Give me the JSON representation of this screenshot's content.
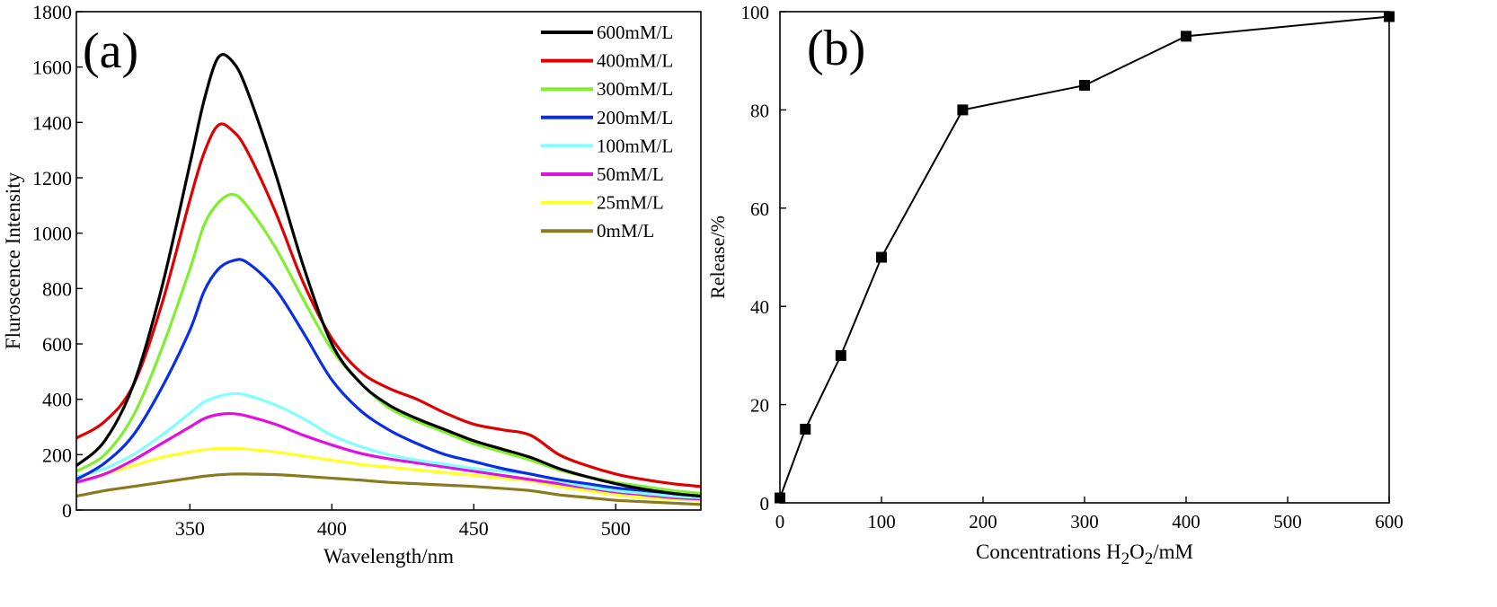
{
  "chart_data": [
    {
      "type": "line",
      "panel_label": "(a)",
      "xlabel": "Wavelength/nm",
      "ylabel": "Fluroscence Intensity",
      "xlim": [
        310,
        530
      ],
      "ylim": [
        0,
        1800
      ],
      "xticks": [
        350,
        400,
        450,
        500
      ],
      "yticks": [
        0,
        200,
        400,
        600,
        800,
        1000,
        1200,
        1400,
        1600,
        1800
      ],
      "grid": false,
      "legend_position": "top-right",
      "x": [
        310,
        320,
        330,
        340,
        350,
        355,
        360,
        365,
        370,
        380,
        390,
        400,
        410,
        420,
        430,
        440,
        450,
        460,
        470,
        480,
        490,
        500,
        510,
        520,
        530
      ],
      "series": [
        {
          "name": "600mM/L",
          "color": "#000000",
          "values": [
            160,
            250,
            450,
            800,
            1250,
            1480,
            1635,
            1620,
            1520,
            1220,
            880,
            600,
            460,
            380,
            330,
            290,
            250,
            220,
            190,
            150,
            120,
            95,
            75,
            60,
            50
          ]
        },
        {
          "name": "400mM/L",
          "color": "#e00000",
          "values": [
            260,
            320,
            450,
            740,
            1120,
            1290,
            1390,
            1370,
            1300,
            1080,
            820,
            620,
            500,
            440,
            400,
            350,
            310,
            290,
            270,
            200,
            160,
            130,
            110,
            95,
            85
          ]
        },
        {
          "name": "300mM/L",
          "color": "#80ef30",
          "values": [
            140,
            200,
            340,
            580,
            870,
            1030,
            1110,
            1140,
            1100,
            950,
            760,
            580,
            460,
            370,
            320,
            280,
            240,
            210,
            180,
            145,
            120,
            100,
            85,
            70,
            60
          ]
        },
        {
          "name": "200mM/L",
          "color": "#0a2ee8",
          "values": [
            110,
            170,
            270,
            440,
            650,
            790,
            870,
            900,
            895,
            800,
            640,
            470,
            360,
            290,
            240,
            200,
            175,
            150,
            130,
            110,
            95,
            80,
            70,
            60,
            50
          ]
        },
        {
          "name": "100mM/L",
          "color": "#80ffff",
          "values": [
            120,
            150,
            200,
            270,
            350,
            390,
            410,
            420,
            415,
            380,
            330,
            270,
            230,
            200,
            180,
            165,
            150,
            140,
            130,
            105,
            85,
            70,
            60,
            50,
            45
          ]
        },
        {
          "name": "50mM/L",
          "color": "#e010e0",
          "values": [
            100,
            130,
            180,
            240,
            300,
            330,
            345,
            348,
            340,
            310,
            270,
            235,
            205,
            185,
            170,
            155,
            140,
            125,
            110,
            95,
            80,
            65,
            55,
            45,
            40
          ]
        },
        {
          "name": "25mM/L",
          "color": "#ffff2a",
          "values": [
            100,
            130,
            160,
            190,
            210,
            218,
            222,
            222,
            220,
            210,
            195,
            180,
            165,
            155,
            145,
            135,
            125,
            115,
            105,
            85,
            70,
            55,
            45,
            40,
            35
          ]
        },
        {
          "name": "0mM/L",
          "color": "#8a7a1e",
          "values": [
            50,
            70,
            85,
            100,
            115,
            122,
            127,
            130,
            130,
            128,
            122,
            115,
            108,
            100,
            95,
            90,
            85,
            78,
            70,
            55,
            45,
            35,
            30,
            25,
            20
          ]
        }
      ]
    },
    {
      "type": "line",
      "panel_label": "(b)",
      "xlabel": "Concentrations H2O2/mM",
      "xlabel_parts": {
        "pre": "Concentrations H",
        "sub1": "2",
        "mid": "O",
        "sub2": "2",
        "post": "/mM"
      },
      "ylabel": "Release/%",
      "xlim": [
        0,
        600
      ],
      "ylim": [
        0,
        100
      ],
      "xticks": [
        0,
        100,
        200,
        300,
        400,
        500,
        600
      ],
      "yticks": [
        0,
        20,
        40,
        60,
        80,
        100
      ],
      "grid": false,
      "marker": "square",
      "series": [
        {
          "color": "#000000",
          "x": [
            0,
            25,
            60,
            100,
            180,
            300,
            400,
            600
          ],
          "values": [
            1,
            15,
            30,
            50,
            80,
            85,
            95,
            99
          ]
        }
      ]
    }
  ]
}
